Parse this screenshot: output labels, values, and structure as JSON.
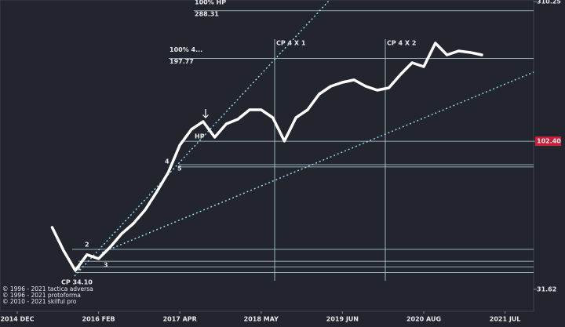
{
  "chart_data": {
    "type": "line",
    "categories": [
      "2014 DEC",
      null,
      null,
      null,
      null,
      null,
      null,
      "2016 FEB",
      null,
      null,
      null,
      null,
      null,
      null,
      "2017 APR",
      null,
      null,
      null,
      null,
      null,
      null,
      "2018 MAY",
      null,
      null,
      null,
      null,
      null,
      null,
      "2019 JUN",
      null,
      null,
      null,
      null,
      null,
      null,
      "2020 AUG",
      null,
      null,
      null,
      null,
      null,
      null,
      "2021 JUL",
      null,
      null
    ],
    "series": [
      {
        "color": "#ffffff",
        "values": [
          null,
          null,
          null,
          51.7,
          42.9,
          36.7,
          41.6,
          40.3,
          44.2,
          49.2,
          53.3,
          59.3,
          68.4,
          79.9,
          99.3,
          112.5,
          119.7,
          105.7,
          117.5,
          122.0,
          131.4,
          131.4,
          123.5,
          102.5,
          123.5,
          131.4,
          148.9,
          158.4,
          163.4,
          166.6,
          158.4,
          153.6,
          156.5,
          173.9,
          190.9,
          185.1,
          223.1,
          203.2,
          209.6,
          207.1,
          203.2,
          null,
          null,
          null,
          null
        ]
      }
    ],
    "log_scale": true,
    "ylim": [
      27.8,
      310.25
    ],
    "yticks": [
      31.62,
      {
        "value": 102.4,
        "label": "102.40"
      },
      310.25
    ],
    "highlight_tick_color": "#c8203a",
    "levels": [
      {
        "value": 288.31,
        "label": "100% HP"
      },
      {
        "value": 197.77,
        "label": "100% 4..."
      }
    ],
    "support_lines": [
      85,
      83.5,
      43.4,
      39.5,
      37.8,
      36.1
    ],
    "annotations": [
      "CP 4 X 1",
      "CP 4 X 2",
      "CP 34.10"
    ],
    "wave_labels": [
      "1",
      "2",
      "3",
      "4",
      "5",
      "HP"
    ],
    "copyright": [
      "© 1996 - 2021 tactica adversa",
      "© 1996 - 2021 protoforma",
      "© 2010 - 2021 skilful pro"
    ]
  }
}
